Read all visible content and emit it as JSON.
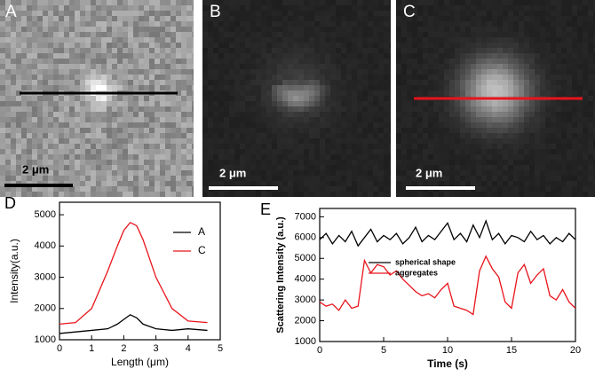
{
  "panels": [
    {
      "label": "A",
      "scale_bar": "2 μm"
    },
    {
      "label": "B",
      "scale_bar": "2 μm"
    },
    {
      "label": "C",
      "scale_bar": "2 μm"
    }
  ],
  "chart_data": [
    {
      "type": "line",
      "panel": "D",
      "xlabel": "Length (μm)",
      "ylabel": "Intensity(a.u.)",
      "xlim": [
        0,
        5
      ],
      "xticks": [
        0,
        1,
        2,
        3,
        4,
        5
      ],
      "ylim": [
        1000,
        5400
      ],
      "yticks": [
        1000,
        2000,
        3000,
        4000,
        5000
      ],
      "legend": "upper right",
      "x": [
        0,
        0.5,
        1,
        1.5,
        1.8,
        2,
        2.2,
        2.4,
        2.6,
        3,
        3.5,
        4,
        4.6
      ],
      "series": [
        {
          "name": "A",
          "color": "#000000",
          "values": [
            1200,
            1250,
            1300,
            1350,
            1500,
            1650,
            1800,
            1700,
            1500,
            1350,
            1300,
            1350,
            1300
          ]
        },
        {
          "name": "C",
          "color": "#e8141b",
          "values": [
            1500,
            1550,
            2000,
            3200,
            4000,
            4500,
            4750,
            4650,
            4200,
            3000,
            2000,
            1600,
            1550
          ]
        }
      ]
    },
    {
      "type": "line",
      "panel": "E",
      "xlabel": "Time (s)",
      "ylabel": "Scattering Intensity (a.u.)",
      "xlim": [
        0,
        20
      ],
      "xticks": [
        0,
        5,
        10,
        15,
        20
      ],
      "ylim": [
        1000,
        7400
      ],
      "yticks": [
        1000,
        2000,
        3000,
        4000,
        5000,
        6000,
        7000
      ],
      "legend": "center",
      "x": [
        0,
        0.5,
        1,
        1.5,
        2,
        2.5,
        3,
        3.5,
        4,
        4.5,
        5,
        5.5,
        6,
        6.5,
        7,
        7.5,
        8,
        8.5,
        9,
        9.5,
        10,
        10.5,
        11,
        11.5,
        12,
        12.5,
        13,
        13.5,
        14,
        14.5,
        15,
        15.5,
        16,
        16.5,
        17,
        17.5,
        18,
        18.5,
        19,
        19.5,
        20
      ],
      "series": [
        {
          "name": "spherical shape",
          "color": "#000000",
          "values": [
            5900,
            6200,
            5700,
            6100,
            5800,
            6300,
            5600,
            6000,
            6400,
            5800,
            6100,
            5900,
            6200,
            5700,
            6000,
            6500,
            5800,
            6100,
            5900,
            6300,
            6700,
            5900,
            6200,
            5800,
            6600,
            6000,
            6800,
            5900,
            6200,
            5700,
            6100,
            6000,
            5800,
            6300,
            5900,
            6100,
            5700,
            6000,
            5800,
            6200,
            5900
          ]
        },
        {
          "name": "aggregates",
          "color": "#e8141b",
          "values": [
            2900,
            2700,
            2800,
            2500,
            3000,
            2600,
            2700,
            4900,
            4300,
            4700,
            4600,
            4200,
            4400,
            4000,
            3700,
            3400,
            3200,
            3300,
            3100,
            3500,
            3800,
            2700,
            2600,
            2500,
            2300,
            4400,
            5100,
            4500,
            4100,
            2900,
            2600,
            4300,
            4700,
            3800,
            4200,
            4500,
            3200,
            3000,
            3500,
            2900,
            2600
          ]
        }
      ]
    }
  ]
}
